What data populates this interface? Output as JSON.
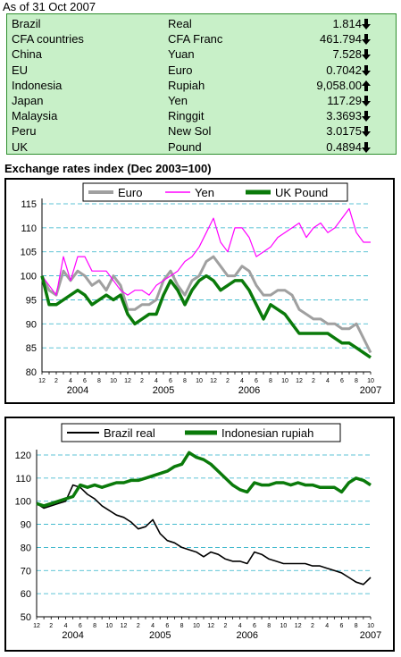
{
  "header": {
    "as_of": "As of 31 Oct 2007"
  },
  "rates_table": {
    "rows": [
      {
        "country": "Brazil",
        "currency": "Real",
        "value": "1.814",
        "direction": "down"
      },
      {
        "country": "CFA countries",
        "currency": "CFA Franc",
        "value": "461.794",
        "direction": "down"
      },
      {
        "country": "China",
        "currency": "Yuan",
        "value": "7.528",
        "direction": "down"
      },
      {
        "country": "EU",
        "currency": "Euro",
        "value": "0.7042",
        "direction": "down"
      },
      {
        "country": "Indonesia",
        "currency": "Rupiah",
        "value": "9,058.00",
        "direction": "up"
      },
      {
        "country": "Japan",
        "currency": "Yen",
        "value": "117.29",
        "direction": "down"
      },
      {
        "country": "Malaysia",
        "currency": "Ringgit",
        "value": "3.3693",
        "direction": "down"
      },
      {
        "country": "Peru",
        "currency": "New Sol",
        "value": "3.0175",
        "direction": "down"
      },
      {
        "country": "UK",
        "currency": "Pound",
        "value": "0.4894",
        "direction": "down"
      }
    ],
    "colors": {
      "background": "#c8f0c8",
      "border": "#2f8f2f"
    }
  },
  "section_title": "Exchange rates index (Dec 2003=100)",
  "chart_data": [
    {
      "type": "line",
      "x": [
        "2003-12",
        "2004-01",
        "2004-02",
        "2004-03",
        "2004-04",
        "2004-05",
        "2004-06",
        "2004-07",
        "2004-08",
        "2004-09",
        "2004-10",
        "2004-11",
        "2004-12",
        "2005-01",
        "2005-02",
        "2005-03",
        "2005-04",
        "2005-05",
        "2005-06",
        "2005-07",
        "2005-08",
        "2005-09",
        "2005-10",
        "2005-11",
        "2005-12",
        "2006-01",
        "2006-02",
        "2006-03",
        "2006-04",
        "2006-05",
        "2006-06",
        "2006-07",
        "2006-08",
        "2006-09",
        "2006-10",
        "2006-11",
        "2006-12",
        "2007-01",
        "2007-02",
        "2007-03",
        "2007-04",
        "2007-05",
        "2007-06",
        "2007-07",
        "2007-08",
        "2007-09",
        "2007-10"
      ],
      "x_tick_labels": [
        "12",
        "2",
        "4",
        "6",
        "8",
        "10",
        "12",
        "2",
        "4",
        "6",
        "8",
        "10",
        "12",
        "2",
        "4",
        "6",
        "8",
        "10",
        "12",
        "2",
        "4",
        "6",
        "8",
        "10"
      ],
      "year_labels": [
        "2004",
        "2005",
        "2006",
        "2007"
      ],
      "ylim": [
        80,
        115
      ],
      "yticks": [
        80,
        85,
        90,
        95,
        100,
        105,
        110,
        115
      ],
      "legend_position": "top",
      "series": [
        {
          "name": "Euro",
          "color": "#a0a0a0",
          "values": [
            100,
            97,
            96,
            101,
            99,
            101,
            100,
            98,
            99,
            97,
            100,
            98,
            93,
            93,
            94,
            94,
            95,
            99,
            101,
            98,
            96,
            99,
            100,
            103,
            104,
            102,
            100,
            100,
            102,
            101,
            98,
            96,
            96,
            97,
            97,
            96,
            93,
            92,
            91,
            91,
            90,
            90,
            89,
            89,
            90,
            87,
            84
          ]
        },
        {
          "name": "Yen",
          "color": "#ff00ff",
          "values": [
            100,
            98,
            96,
            104,
            99,
            104,
            104,
            101,
            101,
            101,
            99,
            97,
            96,
            97,
            97,
            96,
            98,
            99,
            100,
            101,
            103,
            104,
            106,
            109,
            112,
            107,
            105,
            110,
            110,
            108,
            104,
            105,
            106,
            108,
            109,
            110,
            111,
            108,
            110,
            111,
            109,
            110,
            112,
            114,
            109,
            107,
            107
          ]
        },
        {
          "name": "UK Pound",
          "color": "#0a7a0a",
          "values": [
            100,
            94,
            94,
            95,
            96,
            97,
            96,
            94,
            95,
            96,
            95,
            96,
            92,
            90,
            91,
            92,
            92,
            96,
            99,
            97,
            94,
            97,
            99,
            100,
            99,
            97,
            98,
            99,
            99,
            97,
            94,
            91,
            94,
            93,
            92,
            90,
            88,
            88,
            88,
            88,
            88,
            87,
            86,
            86,
            85,
            84,
            83
          ]
        }
      ]
    },
    {
      "type": "line",
      "x": [
        "2003-12",
        "2004-01",
        "2004-02",
        "2004-03",
        "2004-04",
        "2004-05",
        "2004-06",
        "2004-07",
        "2004-08",
        "2004-09",
        "2004-10",
        "2004-11",
        "2004-12",
        "2005-01",
        "2005-02",
        "2005-03",
        "2005-04",
        "2005-05",
        "2005-06",
        "2005-07",
        "2005-08",
        "2005-09",
        "2005-10",
        "2005-11",
        "2005-12",
        "2006-01",
        "2006-02",
        "2006-03",
        "2006-04",
        "2006-05",
        "2006-06",
        "2006-07",
        "2006-08",
        "2006-09",
        "2006-10",
        "2006-11",
        "2006-12",
        "2007-01",
        "2007-02",
        "2007-03",
        "2007-04",
        "2007-05",
        "2007-06",
        "2007-07",
        "2007-08",
        "2007-09",
        "2007-10"
      ],
      "x_tick_labels": [
        "12",
        "2",
        "4",
        "6",
        "8",
        "10",
        "12",
        "2",
        "4",
        "6",
        "8",
        "10",
        "12",
        "2",
        "4",
        "6",
        "8",
        "10",
        "12",
        "2",
        "4",
        "6",
        "8",
        "10"
      ],
      "year_labels": [
        "2004",
        "2005",
        "2006",
        "2007"
      ],
      "ylim": [
        50,
        120
      ],
      "yticks": [
        50,
        60,
        70,
        80,
        90,
        100,
        110,
        120
      ],
      "legend_position": "top",
      "series": [
        {
          "name": "Brazil real",
          "color": "#000000",
          "values": [
            99,
            97,
            98,
            99,
            100,
            107,
            106,
            103,
            101,
            98,
            96,
            94,
            93,
            91,
            88,
            89,
            92,
            86,
            83,
            82,
            80,
            79,
            78,
            76,
            78,
            77,
            75,
            74,
            74,
            73,
            78,
            77,
            75,
            74,
            73,
            73,
            73,
            73,
            72,
            72,
            71,
            70,
            69,
            67,
            65,
            64,
            67
          ]
        },
        {
          "name": "Indonesian rupiah",
          "color": "#0a7a0a",
          "values": [
            99,
            98,
            99,
            100,
            101,
            102,
            107,
            106,
            107,
            106,
            107,
            108,
            108,
            109,
            109,
            110,
            111,
            112,
            113,
            115,
            116,
            121,
            119,
            118,
            116,
            113,
            110,
            107,
            105,
            104,
            108,
            107,
            107,
            108,
            108,
            107,
            108,
            107,
            107,
            106,
            106,
            106,
            104,
            108,
            110,
            109,
            107
          ]
        }
      ]
    }
  ]
}
